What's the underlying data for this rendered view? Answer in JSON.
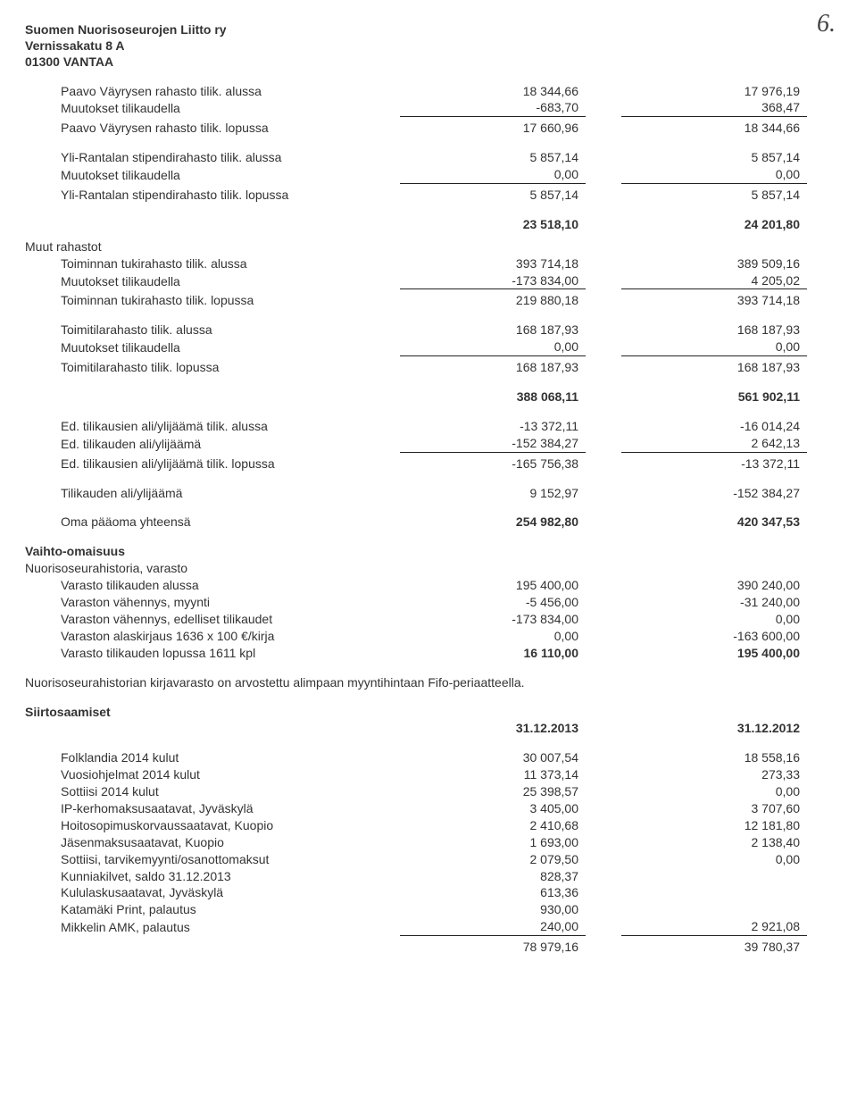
{
  "page_number": "6.",
  "header": {
    "line1": "Suomen Nuorisoseurojen Liitto ry",
    "line2": "Vernissakatu 8 A",
    "line3": "01300 VANTAA"
  },
  "blocks": {
    "paavo": {
      "r1": {
        "label": "Paavo Väyrysen rahasto tilik. alussa",
        "c1": "18 344,66",
        "c2": "17 976,19"
      },
      "r2": {
        "label": "Muutokset tilikaudella",
        "c1": "-683,70",
        "c2": "368,47"
      },
      "r3": {
        "label": "Paavo Väyrysen rahasto tilik. lopussa",
        "c1": "17 660,96",
        "c2": "18 344,66"
      }
    },
    "yli": {
      "r1": {
        "label": "Yli-Rantalan stipendirahasto tilik. alussa",
        "c1": "5 857,14",
        "c2": "5 857,14"
      },
      "r2": {
        "label": "Muutokset tilikaudella",
        "c1": "0,00",
        "c2": "0,00"
      },
      "r3": {
        "label": "Yli-Rantalan stipendirahasto tilik. lopussa",
        "c1": "5 857,14",
        "c2": "5 857,14"
      }
    },
    "sub1": {
      "c1": "23 518,10",
      "c2": "24 201,80"
    },
    "muut_title": "Muut rahastot",
    "toiminnan": {
      "r1": {
        "label": "Toiminnan tukirahasto tilik. alussa",
        "c1": "393 714,18",
        "c2": "389 509,16"
      },
      "r2": {
        "label": "Muutokset tilikaudella",
        "c1": "-173 834,00",
        "c2": "4 205,02"
      },
      "r3": {
        "label": "Toiminnan tukirahasto tilik. lopussa",
        "c1": "219 880,18",
        "c2": "393 714,18"
      }
    },
    "toimitila": {
      "r1": {
        "label": "Toimitilarahasto tilik. alussa",
        "c1": "168 187,93",
        "c2": "168 187,93"
      },
      "r2": {
        "label": "Muutokset tilikaudella",
        "c1": "0,00",
        "c2": "0,00"
      },
      "r3": {
        "label": "Toimitilarahasto tilik. lopussa",
        "c1": "168 187,93",
        "c2": "168 187,93"
      }
    },
    "sub2": {
      "c1": "388 068,11",
      "c2": "561 902,11"
    },
    "ed": {
      "r1": {
        "label": "Ed. tilikausien ali/ylijäämä tilik. alussa",
        "c1": "-13 372,11",
        "c2": "-16 014,24"
      },
      "r2": {
        "label": "Ed. tilikauden ali/ylijäämä",
        "c1": "-152 384,27",
        "c2": "2 642,13"
      },
      "r3": {
        "label": "Ed. tilikausien ali/ylijäämä tilik. lopussa",
        "c1": "-165 756,38",
        "c2": "-13 372,11"
      }
    },
    "tilik": {
      "label": "Tilikauden ali/ylijäämä",
      "c1": "9 152,97",
      "c2": "-152 384,27"
    },
    "oma": {
      "label": "Oma pääoma yhteensä",
      "c1": "254 982,80",
      "c2": "420 347,53"
    },
    "vaihto_title": "Vaihto-omaisuus",
    "nuoriso_title": "Nuorisoseurahistoria, varasto",
    "varasto": {
      "r1": {
        "label": "Varasto tilikauden alussa",
        "c1": "195 400,00",
        "c2": "390 240,00"
      },
      "r2": {
        "label": "Varaston vähennys, myynti",
        "c1": "-5 456,00",
        "c2": "-31 240,00"
      },
      "r3": {
        "label": "Varaston vähennys, edelliset tilikaudet",
        "c1": "-173 834,00",
        "c2": "0,00"
      },
      "r4": {
        "label": "Varaston alaskirjaus 1636 x 100 €/kirja",
        "c1": "0,00",
        "c2": "-163 600,00"
      },
      "r5": {
        "label": "Varasto tilikauden lopussa 1611 kpl",
        "c1": "16 110,00",
        "c2": "195 400,00"
      }
    },
    "note": "Nuorisoseurahistorian kirjavarasto on arvostettu alimpaan myyntihintaan Fifo-periaatteella.",
    "siirto_title": "Siirtosaamiset",
    "dates": {
      "c1": "31.12.2013",
      "c2": "31.12.2012"
    },
    "siirto": {
      "r1": {
        "label": "Folklandia 2014 kulut",
        "c1": "30 007,54",
        "c2": "18 558,16"
      },
      "r2": {
        "label": "Vuosiohjelmat 2014 kulut",
        "c1": "11 373,14",
        "c2": "273,33"
      },
      "r3": {
        "label": "Sottiisi 2014 kulut",
        "c1": "25 398,57",
        "c2": "0,00"
      },
      "r4": {
        "label": "IP-kerhomaksusaatavat, Jyväskylä",
        "c1": "3 405,00",
        "c2": "3 707,60"
      },
      "r5": {
        "label": "Hoitosopimuskorvaussaatavat, Kuopio",
        "c1": "2 410,68",
        "c2": "12 181,80"
      },
      "r6": {
        "label": "Jäsenmaksusaatavat, Kuopio",
        "c1": "1 693,00",
        "c2": "2 138,40"
      },
      "r7": {
        "label": "Sottiisi, tarvikemyynti/osanottomaksut",
        "c1": "2 079,50",
        "c2": "0,00"
      },
      "r8": {
        "label": "Kunniakilvet, saldo 31.12.2013",
        "c1": "828,37",
        "c2": ""
      },
      "r9": {
        "label": "Kululaskusaatavat, Jyväskylä",
        "c1": "613,36",
        "c2": ""
      },
      "r10": {
        "label": "Katamäki Print, palautus",
        "c1": "930,00",
        "c2": ""
      },
      "r11": {
        "label": "Mikkelin AMK, palautus",
        "c1": "240,00",
        "c2": "2 921,08"
      },
      "total": {
        "c1": "78 979,16",
        "c2": "39 780,37"
      }
    }
  }
}
